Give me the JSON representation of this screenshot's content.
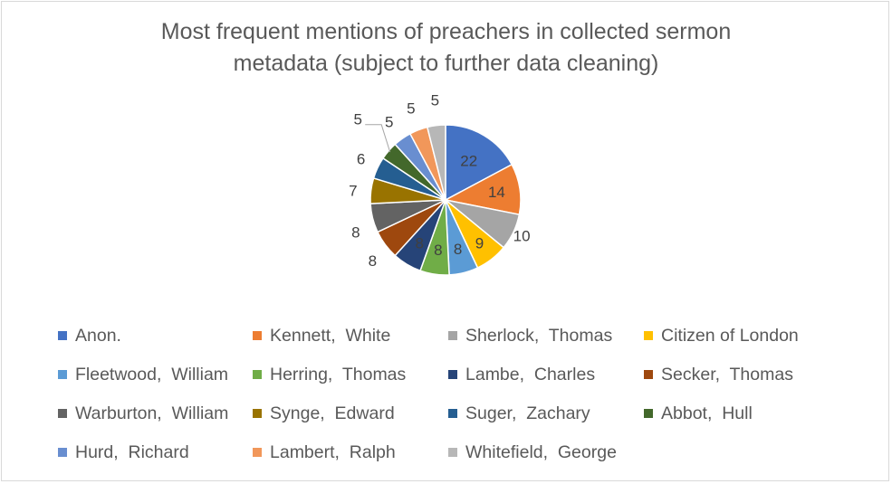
{
  "chart_data": {
    "type": "pie",
    "title_lines": [
      "Most frequent mentions of preachers in collected sermon",
      "metadata (subject to further data cleaning)"
    ],
    "legend_position": "bottom",
    "slices": [
      {
        "label": "Anon.",
        "value": 22,
        "color": "#4472c4"
      },
      {
        "label": "Kennett,  White",
        "value": 14,
        "color": "#ed7d31"
      },
      {
        "label": "Sherlock,  Thomas",
        "value": 10,
        "color": "#a5a5a5"
      },
      {
        "label": "Citizen of London",
        "value": 9,
        "color": "#ffc000"
      },
      {
        "label": "Fleetwood,  William",
        "value": 8,
        "color": "#5b9bd5"
      },
      {
        "label": "Herring,  Thomas",
        "value": 8,
        "color": "#70ad47"
      },
      {
        "label": "Lambe,  Charles",
        "value": 8,
        "color": "#264478"
      },
      {
        "label": "Secker,  Thomas",
        "value": 8,
        "color": "#9e480e"
      },
      {
        "label": "Warburton,  William",
        "value": 8,
        "color": "#636363"
      },
      {
        "label": "Synge,  Edward",
        "value": 7,
        "color": "#997300"
      },
      {
        "label": "Suger,  Zachary",
        "value": 6,
        "color": "#255e91"
      },
      {
        "label": "Abbot,  Hull",
        "value": 5,
        "color": "#43682b"
      },
      {
        "label": "Hurd,  Richard",
        "value": 5,
        "color": "#698ed0"
      },
      {
        "label": "Lambert,  Ralph",
        "value": 5,
        "color": "#f1975a"
      },
      {
        "label": "Whitefield,  George",
        "value": 5,
        "color": "#b7b7b7"
      }
    ]
  }
}
